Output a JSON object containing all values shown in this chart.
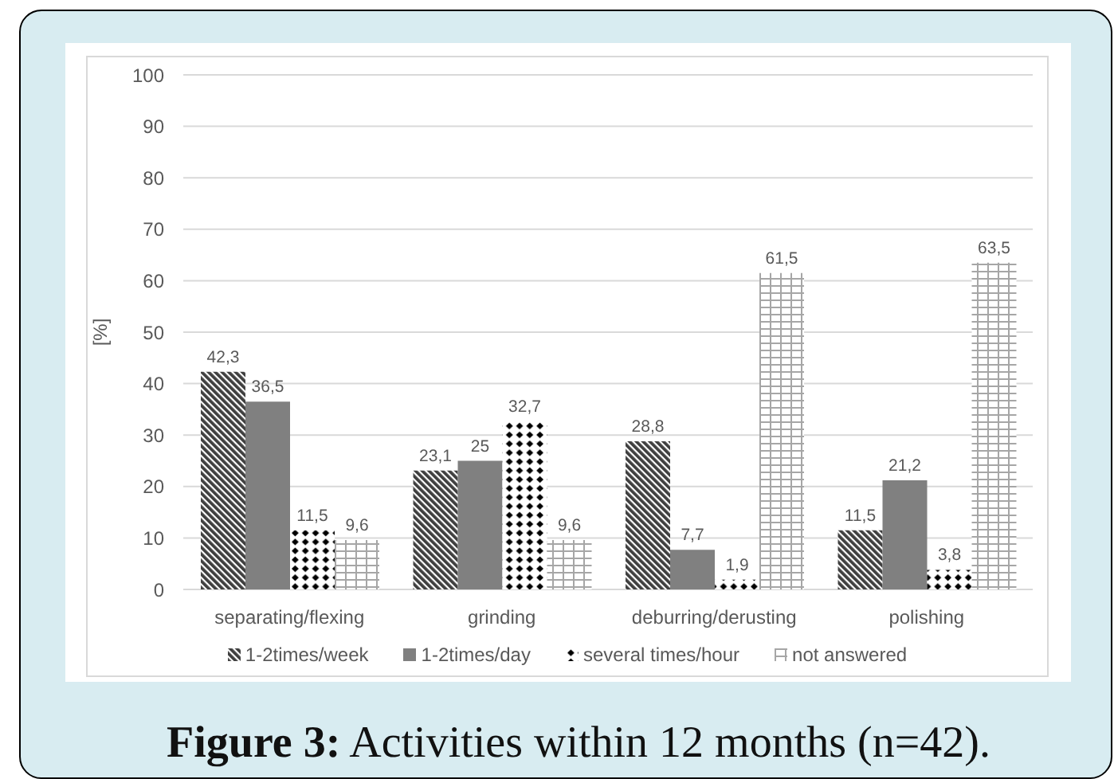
{
  "chart_data": {
    "type": "bar",
    "title": "Figure 3: Activities within 12 months (n=42).",
    "ylabel": "[%]",
    "categories": [
      "separating/flexing",
      "grinding",
      "deburring/derusting",
      "polishing"
    ],
    "series": [
      {
        "name": "1-2times/week",
        "color": "#3f3f3f",
        "values": [
          42.3,
          23.1,
          28.8,
          11.5
        ],
        "value_labels": [
          "42,3",
          "23,1",
          "28,8",
          "11,5"
        ]
      },
      {
        "name": "1-2times/day",
        "color": "#808080",
        "values": [
          36.5,
          25,
          7.7,
          21.2
        ],
        "value_labels": [
          "36,5",
          "25",
          "7,7",
          "21,2"
        ]
      },
      {
        "name": "several times/hour",
        "color": "#000000",
        "values": [
          11.5,
          32.7,
          1.9,
          3.8
        ],
        "value_labels": [
          "11,5",
          "32,7",
          "1,9",
          "3,8"
        ]
      },
      {
        "name": "not answered",
        "color": "#a6a6a6",
        "values": [
          9.6,
          9.6,
          61.5,
          63.5
        ],
        "value_labels": [
          "9,6",
          "9,6",
          "61,5",
          "63,5"
        ]
      }
    ],
    "ylim": [
      0,
      100
    ],
    "yticks": [
      0,
      10,
      20,
      30,
      40,
      50,
      60,
      70,
      80,
      90,
      100
    ],
    "grid": "y",
    "legend": "bottom"
  }
}
